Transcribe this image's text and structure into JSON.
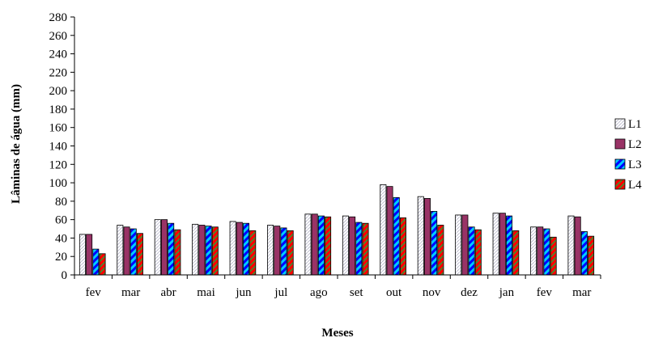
{
  "chart_data": {
    "type": "bar",
    "title": "",
    "xlabel": "Meses",
    "ylabel": "Lâminas de água (mm)",
    "ylim": [
      0,
      280
    ],
    "yticks": [
      0,
      20,
      40,
      60,
      80,
      100,
      120,
      140,
      160,
      180,
      200,
      220,
      240,
      260,
      280
    ],
    "grid": false,
    "legend_position": "right",
    "categories": [
      "fev",
      "mar",
      "abr",
      "mai",
      "jun",
      "jul",
      "ago",
      "set",
      "out",
      "nov",
      "dez",
      "jan",
      "fev",
      "mar"
    ],
    "series": [
      {
        "name": "L1",
        "color": "#ffffff",
        "pattern": "white-diagonal",
        "values": [
          44,
          54,
          60,
          55,
          58,
          54,
          66,
          64,
          98,
          85,
          65,
          67,
          52,
          64
        ]
      },
      {
        "name": "L2",
        "color": "#993366",
        "pattern": "solid",
        "values": [
          44,
          52,
          60,
          54,
          57,
          53,
          66,
          63,
          96,
          83,
          65,
          67,
          52,
          63
        ]
      },
      {
        "name": "L3",
        "color": "#0000ff",
        "pattern": "blue-cyan-diagonal",
        "values": [
          28,
          50,
          56,
          53,
          56,
          51,
          64,
          57,
          84,
          69,
          52,
          64,
          50,
          47
        ]
      },
      {
        "name": "L4",
        "color": "#ff0000",
        "pattern": "red-green-hatch",
        "values": [
          23,
          45,
          49,
          52,
          48,
          48,
          63,
          56,
          62,
          54,
          49,
          48,
          41,
          42
        ]
      }
    ]
  }
}
